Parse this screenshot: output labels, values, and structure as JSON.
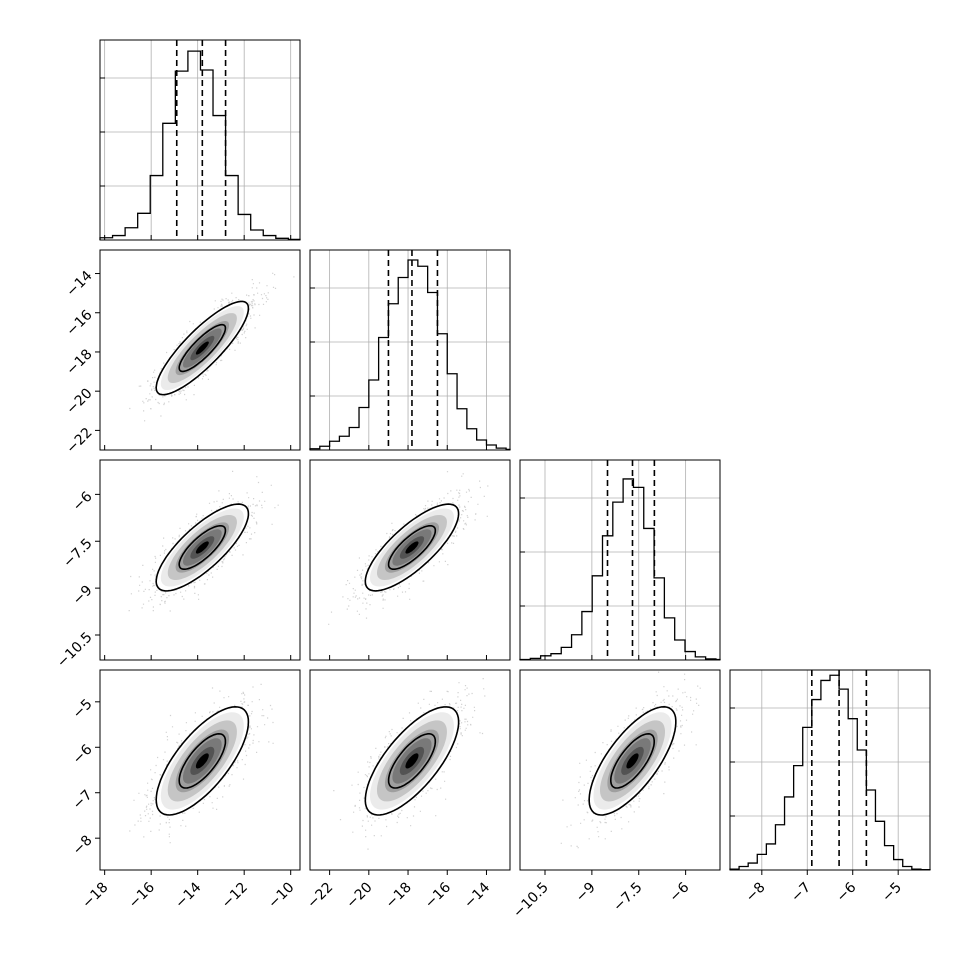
{
  "figure": {
    "type": "corner-plot",
    "contour_levels": [
      0.39,
      0.86
    ],
    "colors": {
      "hist_line": "#000000",
      "quantile_line": "#000000",
      "grid": "#b0b0b0",
      "points": "#9a9a9a",
      "density_dark": "#000000",
      "density_light": "#ffffff"
    }
  },
  "chart_data": [
    {
      "type": "histogram",
      "row": 0,
      "col": 0,
      "param": 0,
      "xlim": [
        -18.2,
        -9.6
      ],
      "bin_edges": [
        -18.2,
        -17.66,
        -17.12,
        -16.58,
        -16.04,
        -15.5,
        -14.96,
        -14.42,
        -13.88,
        -13.34,
        -12.8,
        -12.26,
        -11.72,
        -11.18,
        -10.64,
        -10.1,
        -9.6
      ],
      "counts": [
        20,
        40,
        110,
        240,
        580,
        1050,
        1520,
        1700,
        1530,
        1120,
        580,
        230,
        90,
        40,
        15,
        5
      ],
      "ylim": [
        0,
        1800
      ],
      "quantiles": [
        -14.9,
        -13.8,
        -12.8
      ],
      "xticks": [
        -18,
        -16,
        -14,
        -12,
        -10
      ],
      "grid": true
    },
    {
      "type": "histogram",
      "row": 1,
      "col": 1,
      "param": 1,
      "xlim": [
        -23.0,
        -12.8
      ],
      "bin_edges": [
        -23.0,
        -22.5,
        -22.0,
        -21.5,
        -21.0,
        -20.5,
        -20.0,
        -19.5,
        -19.0,
        -18.5,
        -18.0,
        -17.5,
        -17.0,
        -16.5,
        -16.0,
        -15.5,
        -15.0,
        -14.5,
        -14.0,
        -13.5,
        -13.0,
        -12.8
      ],
      "counts": [
        10,
        30,
        70,
        110,
        180,
        340,
        560,
        900,
        1170,
        1380,
        1520,
        1470,
        1260,
        930,
        610,
        330,
        170,
        80,
        40,
        15,
        5
      ],
      "ylim": [
        0,
        1600
      ],
      "quantiles": [
        -19.0,
        -17.8,
        -16.5
      ],
      "xticks": [
        -22,
        -20,
        -18,
        -16,
        -14
      ],
      "grid": true
    },
    {
      "type": "histogram",
      "row": 2,
      "col": 2,
      "param": 2,
      "xlim": [
        -11.3,
        -4.9
      ],
      "bin_edges": [
        -11.3,
        -10.97,
        -10.64,
        -10.31,
        -9.98,
        -9.65,
        -9.32,
        -8.99,
        -8.66,
        -8.33,
        -8.0,
        -7.67,
        -7.34,
        -7.01,
        -6.68,
        -6.35,
        -6.02,
        -5.69,
        -5.36,
        -5.03,
        -4.9
      ],
      "counts": [
        5,
        15,
        40,
        60,
        120,
        240,
        460,
        800,
        1180,
        1500,
        1720,
        1640,
        1250,
        780,
        400,
        190,
        80,
        30,
        10,
        5
      ],
      "ylim": [
        0,
        1900
      ],
      "quantiles": [
        -8.5,
        -7.7,
        -7.0
      ],
      "xticks": [
        -10.5,
        -9.0,
        -7.5,
        -6.0
      ],
      "grid": true
    },
    {
      "type": "histogram",
      "row": 3,
      "col": 3,
      "param": 3,
      "xlim": [
        -8.7,
        -4.3
      ],
      "bin_edges": [
        -8.7,
        -8.5,
        -8.3,
        -8.1,
        -7.9,
        -7.7,
        -7.5,
        -7.3,
        -7.1,
        -6.9,
        -6.7,
        -6.5,
        -6.3,
        -6.1,
        -5.9,
        -5.7,
        -5.5,
        -5.3,
        -5.1,
        -4.9,
        -4.7,
        -4.5,
        -4.3
      ],
      "counts": [
        5,
        20,
        40,
        90,
        150,
        260,
        420,
        600,
        820,
        980,
        1090,
        1120,
        1040,
        870,
        690,
        460,
        280,
        140,
        60,
        20,
        5,
        2
      ],
      "ylim": [
        0,
        1150
      ],
      "quantiles": [
        -6.9,
        -6.3,
        -5.7
      ],
      "xticks": [
        -8,
        -7,
        -6,
        -5
      ],
      "grid": true
    },
    {
      "type": "scatter-density",
      "row": 1,
      "col": 0,
      "x_param": 0,
      "y_param": 1,
      "xlim": [
        -18.2,
        -9.6
      ],
      "ylim": [
        -23.0,
        -12.8
      ],
      "mean": [
        -13.8,
        -17.8
      ],
      "sd": [
        1.0,
        1.2
      ],
      "rho": 0.85,
      "n_points": 1400,
      "yticks": [
        -22,
        -20,
        -18,
        -16,
        -14
      ]
    },
    {
      "type": "scatter-density",
      "row": 2,
      "col": 0,
      "x_param": 0,
      "y_param": 2,
      "xlim": [
        -18.2,
        -9.6
      ],
      "ylim": [
        -11.3,
        -4.9
      ],
      "mean": [
        -13.8,
        -7.7
      ],
      "sd": [
        1.0,
        0.7
      ],
      "rho": 0.78,
      "n_points": 1400,
      "yticks": [
        -10.5,
        -9.0,
        -7.5,
        -6.0
      ]
    },
    {
      "type": "scatter-density",
      "row": 2,
      "col": 1,
      "x_param": 1,
      "y_param": 2,
      "xlim": [
        -23.0,
        -12.8
      ],
      "ylim": [
        -11.3,
        -4.9
      ],
      "mean": [
        -17.8,
        -7.7
      ],
      "sd": [
        1.2,
        0.7
      ],
      "rho": 0.78,
      "n_points": 1400
    },
    {
      "type": "scatter-density",
      "row": 3,
      "col": 0,
      "x_param": 0,
      "y_param": 3,
      "xlim": [
        -18.2,
        -9.6
      ],
      "ylim": [
        -8.7,
        -4.3
      ],
      "mean": [
        -13.8,
        -6.3
      ],
      "sd": [
        1.0,
        0.6
      ],
      "rho": 0.72,
      "n_points": 1400,
      "yticks": [
        -8,
        -7,
        -6,
        -5
      ]
    },
    {
      "type": "scatter-density",
      "row": 3,
      "col": 1,
      "x_param": 1,
      "y_param": 3,
      "xlim": [
        -23.0,
        -12.8
      ],
      "ylim": [
        -8.7,
        -4.3
      ],
      "mean": [
        -17.8,
        -6.3
      ],
      "sd": [
        1.2,
        0.6
      ],
      "rho": 0.72,
      "n_points": 1400
    },
    {
      "type": "scatter-density",
      "row": 3,
      "col": 2,
      "x_param": 2,
      "y_param": 3,
      "xlim": [
        -11.3,
        -4.9
      ],
      "ylim": [
        -8.7,
        -4.3
      ],
      "mean": [
        -7.7,
        -6.3
      ],
      "sd": [
        0.7,
        0.6
      ],
      "rho": 0.72,
      "n_points": 1400
    }
  ]
}
